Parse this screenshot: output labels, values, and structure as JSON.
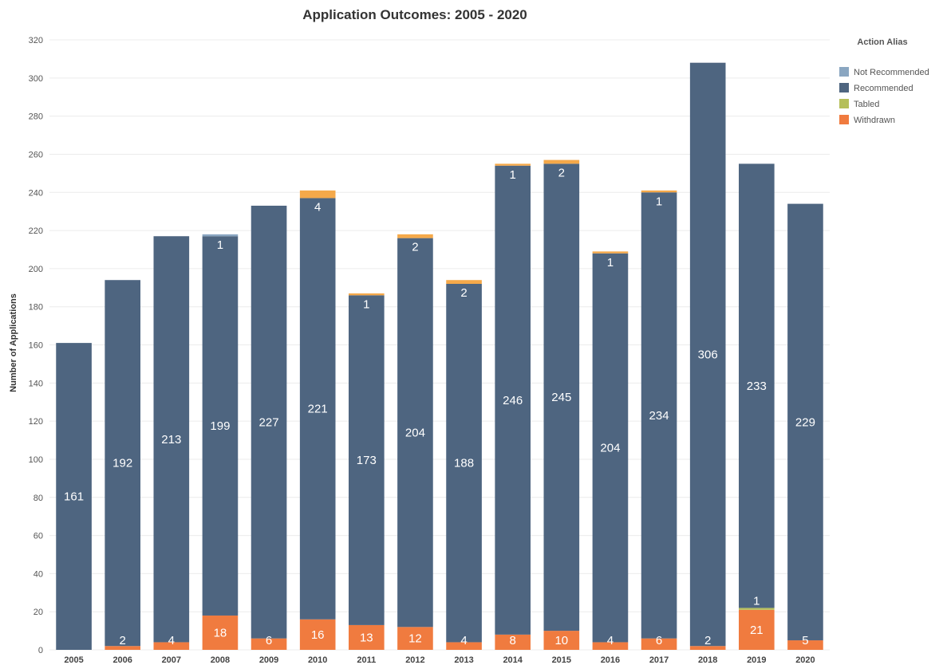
{
  "chart_data": {
    "type": "bar",
    "stacked": true,
    "title": "Application Outcomes: 2005 - 2020",
    "xlabel": "",
    "ylabel": "Number of Applications",
    "ylim": [
      0,
      320
    ],
    "yticks": [
      0,
      20,
      40,
      60,
      80,
      100,
      120,
      140,
      160,
      180,
      200,
      220,
      240,
      260,
      280,
      300,
      320
    ],
    "grid": true,
    "legend": {
      "title": "Action Alias",
      "position": "top-right"
    },
    "categories": [
      "2005",
      "2006",
      "2007",
      "2008",
      "2009",
      "2010",
      "2011",
      "2012",
      "2013",
      "2014",
      "2015",
      "2016",
      "2017",
      "2018",
      "2019",
      "2020"
    ],
    "series": [
      {
        "name": "Withdrawn",
        "color": "#f07b3f",
        "values": [
          0,
          2,
          4,
          18,
          6,
          16,
          13,
          12,
          4,
          8,
          10,
          4,
          6,
          2,
          21,
          5
        ]
      },
      {
        "name": "Tabled",
        "color": "#b5bf5a",
        "values": [
          0,
          0,
          0,
          0,
          0,
          0,
          0,
          0,
          0,
          0,
          0,
          0,
          0,
          0,
          1,
          0
        ]
      },
      {
        "name": "Recommended",
        "color": "#4e6580",
        "values": [
          161,
          192,
          213,
          199,
          227,
          221,
          173,
          204,
          188,
          246,
          245,
          204,
          234,
          306,
          233,
          229
        ]
      },
      {
        "name": "Not Recommended",
        "color": "#8aa6c1",
        "values": [
          0,
          0,
          0,
          1,
          0,
          0,
          0,
          0,
          0,
          0,
          0,
          0,
          0,
          0,
          0,
          0
        ]
      }
    ],
    "other_top": {
      "color": "#f5a94a",
      "values": [
        0,
        0,
        0,
        0,
        0,
        4,
        1,
        2,
        2,
        1,
        2,
        1,
        1,
        0,
        0,
        0
      ]
    },
    "legend_order": [
      "Not Recommended",
      "Recommended",
      "Tabled",
      "Withdrawn"
    ]
  }
}
